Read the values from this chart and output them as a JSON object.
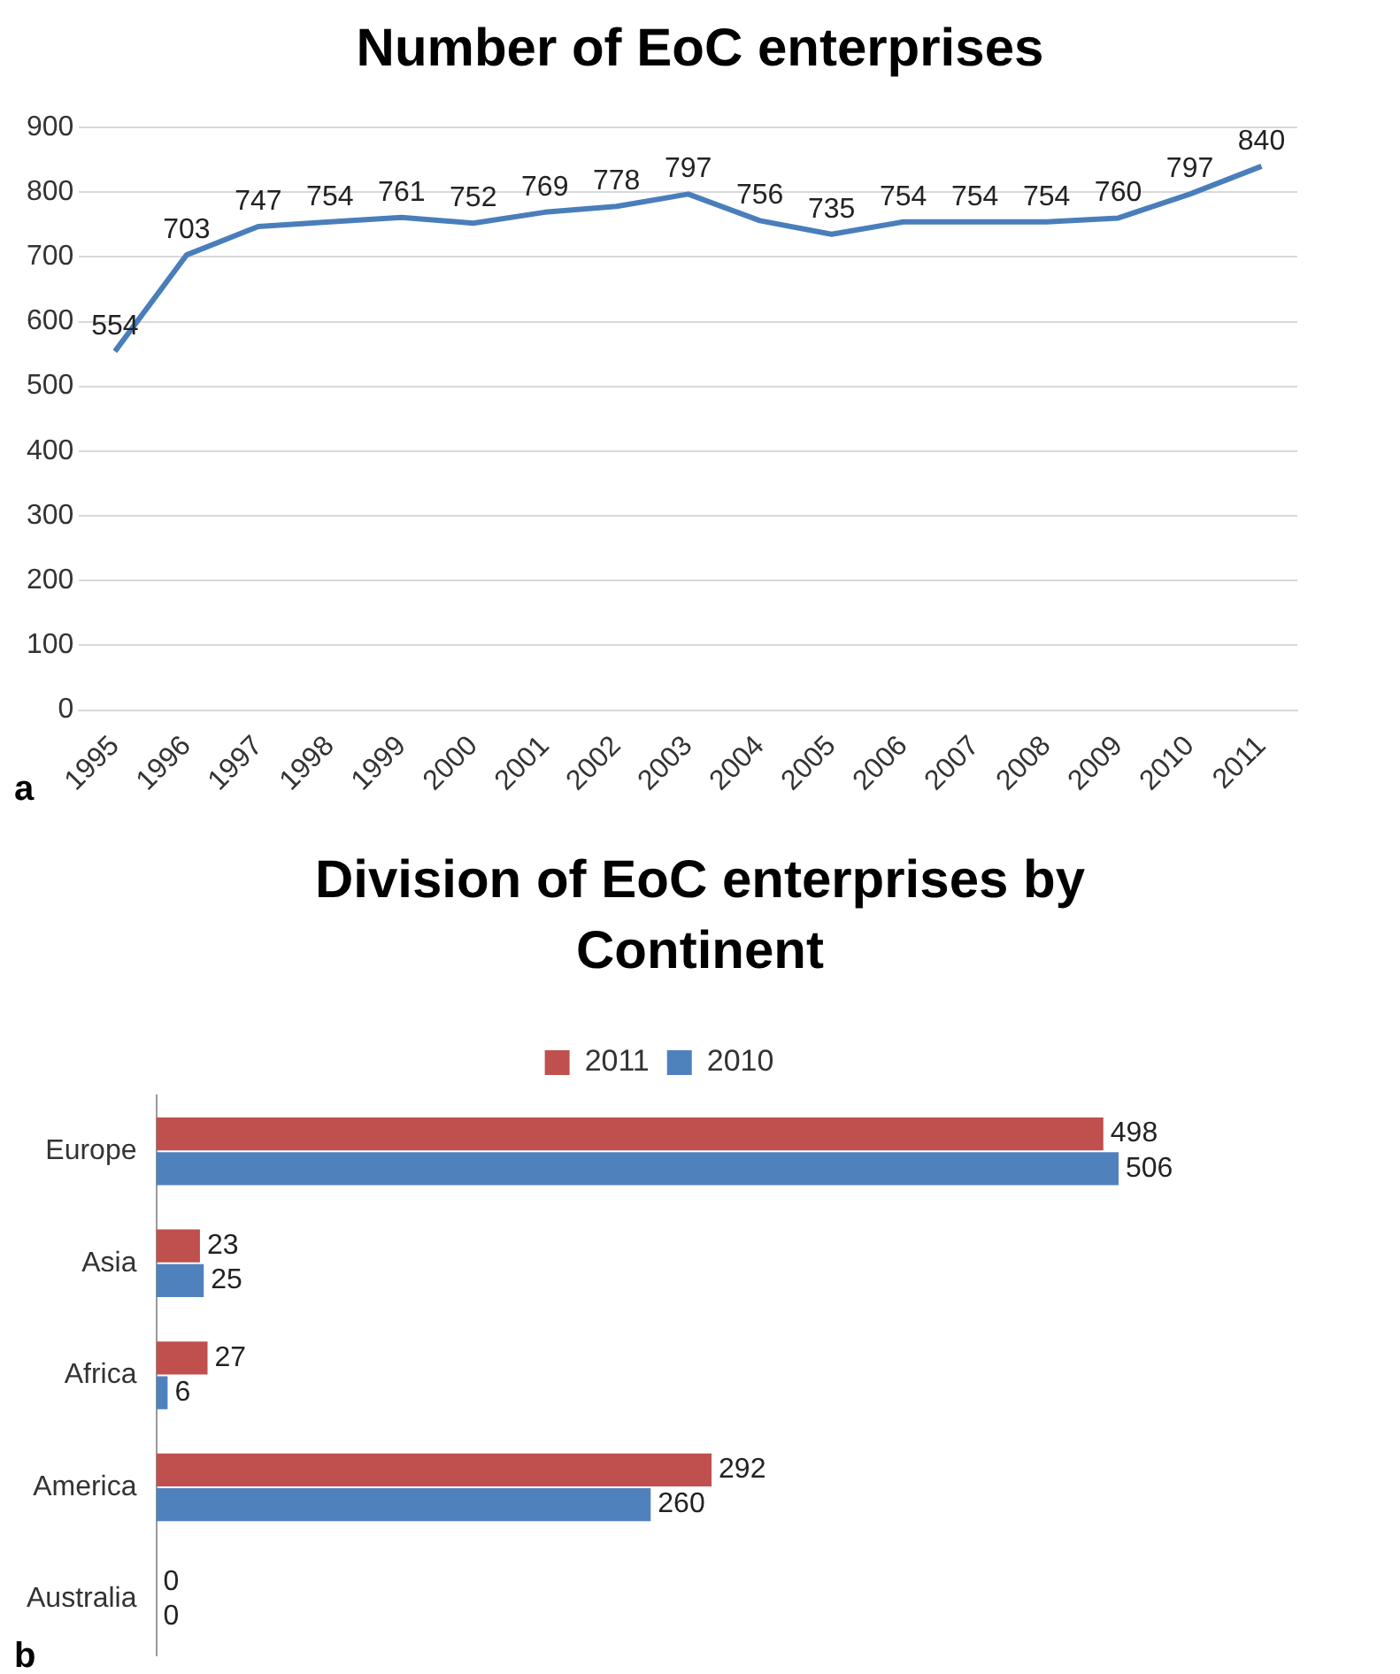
{
  "chart_data": [
    {
      "type": "line",
      "title": "Number of EoC enterprises",
      "categories": [
        "1995",
        "1996",
        "1997",
        "1998",
        "1999",
        "2000",
        "2001",
        "2002",
        "2003",
        "2004",
        "2005",
        "2006",
        "2007",
        "2008",
        "2009",
        "2010",
        "2011"
      ],
      "values": [
        554,
        703,
        747,
        754,
        761,
        752,
        769,
        778,
        797,
        756,
        735,
        754,
        754,
        754,
        760,
        797,
        840
      ],
      "color": "#4a7ebb",
      "ylim": [
        0,
        900
      ],
      "yticks": [
        0,
        100,
        200,
        300,
        400,
        500,
        600,
        700,
        800,
        900
      ],
      "grid": "y",
      "data_labels": true,
      "marker": "none",
      "annotations": [
        "a"
      ]
    },
    {
      "type": "bar",
      "orientation": "horizontal",
      "title": "Division of EoC enterprises by Continent",
      "categories": [
        "Europe",
        "Asia",
        "Africa",
        "America",
        "Australia"
      ],
      "series": [
        {
          "name": "2011",
          "color": "#c0504d",
          "values": [
            498,
            23,
            27,
            292,
            0
          ]
        },
        {
          "name": "2010",
          "color": "#4f81bd",
          "values": [
            506,
            25,
            6,
            260,
            0
          ]
        }
      ],
      "legend": "top",
      "grid": false,
      "tick_labels": "y",
      "data_labels": true,
      "annotations": [
        "b"
      ]
    }
  ]
}
